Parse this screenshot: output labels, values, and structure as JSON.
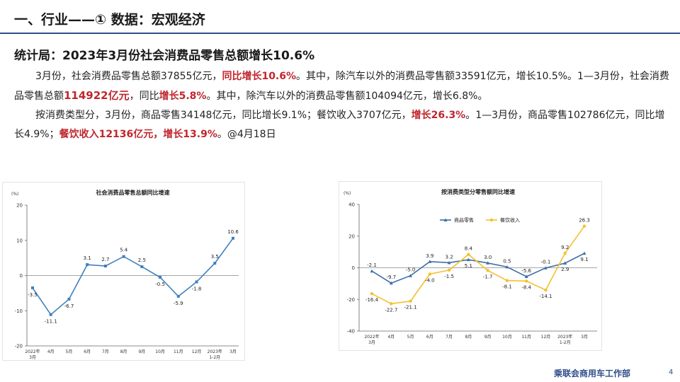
{
  "header": {
    "title": "一、行业——① 数据：宏观经济"
  },
  "section": {
    "heading": "统计局：2023年3月份社会消费品零售总额增长10.6%"
  },
  "paragraph1": {
    "p1": "3月份，社会消费品零售总额37855亿元，",
    "p1_red": "同比增长10.6%",
    "p2": "。其中，除汽车以外的消费品零售额33591亿元，增长10.5%。1—3月份，社会消费品零售总额",
    "p2_red": "114922亿元",
    "p3": "，同比",
    "p3_red": "增长5.8%",
    "p4": "。其中，除汽车以外的消费品零售额104094亿元，增长6.8%。"
  },
  "paragraph2": {
    "p1": "按消费类型分，3月份，商品零售34148亿元，同比增长9.1%；餐饮收入3707亿元，",
    "p1_red": "增长26.3%",
    "p2": "。1—3月份，商品零售102786亿元，同比增长4.9%；",
    "p2_red": "餐饮收入12136亿元，增长13.9%",
    "p3": "。@4月18日"
  },
  "footer": {
    "org": "乘联会商用车工作部",
    "page": "4"
  },
  "chart_data": [
    {
      "type": "line",
      "title": "社会消费品零售总额同比增速",
      "ylabel": "(%)",
      "ylim": [
        -20,
        20
      ],
      "yticks": [
        20,
        10,
        0,
        -10,
        -20
      ],
      "x": [
        "2022年\n3月",
        "4月",
        "5月",
        "6月",
        "7月",
        "8月",
        "9月",
        "10月",
        "11月",
        "12月",
        "2023年\n1-2月",
        "3月"
      ],
      "values": [
        -3.5,
        -11.1,
        -6.7,
        3.1,
        2.7,
        5.4,
        2.5,
        -0.5,
        -5.9,
        -1.8,
        3.5,
        10.6
      ],
      "labels": [
        "-3.5",
        "-11.1",
        "-6.7",
        "3.1",
        "2.7",
        "5.4",
        "2.5",
        "-0.5",
        "-5.9",
        "-1.8",
        "3.5",
        "10.6"
      ],
      "color": "#3f7fbf",
      "grid": false
    },
    {
      "type": "line",
      "title": "按消费类型分零售额同比增速",
      "ylabel": "(%)",
      "ylim": [
        -40,
        40
      ],
      "yticks": [
        40,
        20,
        0,
        -20,
        -40
      ],
      "x": [
        "2022年\n3月",
        "4月",
        "5月",
        "6月",
        "7月",
        "8月",
        "9月",
        "10月",
        "11月",
        "12月",
        "2023年\n1-2月",
        "3月"
      ],
      "legend_position": "top",
      "series": [
        {
          "name": "商品零售",
          "color": "#3d6fa8",
          "values": [
            -2.1,
            -9.7,
            -5.0,
            3.9,
            3.2,
            5.1,
            3.0,
            0.5,
            -5.6,
            -0.1,
            2.9,
            9.1
          ],
          "labels": [
            "-2.1",
            "-9.7",
            "-5.0",
            "3.9",
            "3.2",
            "5.1",
            "3.0",
            "0.5",
            "-5.6",
            "-0.1",
            "2.9",
            "9.1"
          ]
        },
        {
          "name": "餐饮收入",
          "color": "#f2c12e",
          "values": [
            -16.4,
            -22.7,
            -21.1,
            -4.0,
            -1.5,
            8.4,
            -1.7,
            -8.1,
            -8.4,
            -14.1,
            9.2,
            26.3
          ],
          "labels": [
            "-16.4",
            "-22.7",
            "-21.1",
            "-4.0",
            "-1.5",
            "8.4",
            "-1.7",
            "-8.1",
            "-8.4",
            "-14.1",
            "9.2",
            "26.3"
          ]
        }
      ],
      "grid": false
    }
  ]
}
